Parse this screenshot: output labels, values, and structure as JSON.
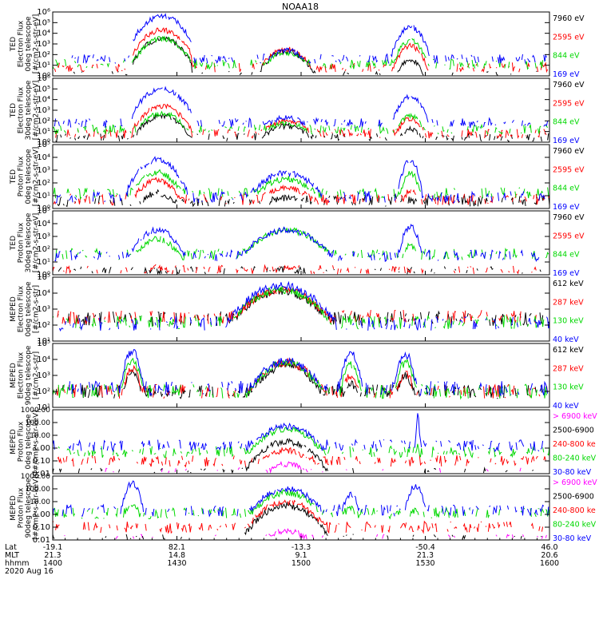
{
  "title": "NOAA18",
  "colors": {
    "black": "#000000",
    "red": "#ff0000",
    "green": "#00d800",
    "blue": "#0000ff",
    "magenta": "#ff00ff",
    "axis": "#000000"
  },
  "chart_data": {
    "type": "line",
    "x_axis": {
      "row_labels": [
        "Lat",
        "MLT",
        "hhmm"
      ],
      "ticks": [
        {
          "time": "1400",
          "lat": "-19.1",
          "mlt": "21.3"
        },
        {
          "time": "1430",
          "lat": "82.1",
          "mlt": "14.8"
        },
        {
          "time": "1500",
          "lat": "-13.3",
          "mlt": "9.1"
        },
        {
          "time": "1530",
          "lat": "-50.4",
          "mlt": "21.3"
        },
        {
          "time": "1600",
          "lat": "46.0",
          "mlt": "20.6"
        }
      ],
      "date": "2020 Aug 16"
    },
    "panels": [
      {
        "ylabel": [
          "TED",
          "Electron Flux",
          "0deg telescope",
          "[#/cm2-s-str-eV]"
        ],
        "scale": "log",
        "ylim_exp": [
          0,
          6
        ],
        "ticks": [
          "10⁰",
          "10¹",
          "10²",
          "10³",
          "10⁴",
          "10⁵",
          "10⁶"
        ],
        "legend": [
          {
            "label": "7960 eV",
            "color": "black"
          },
          {
            "label": "2595 eV",
            "color": "red"
          },
          {
            "label": "844 eV",
            "color": "green"
          },
          {
            "label": "169 eV",
            "color": "blue"
          }
        ],
        "peaks": [
          {
            "center": 0.22,
            "width": 0.05,
            "levels": [
              3.5,
              4.3,
              3.5,
              5.6
            ]
          },
          {
            "center": 0.47,
            "width": 0.05,
            "levels": [
              2.3,
              2.5,
              2.2,
              2.4
            ]
          },
          {
            "center": 0.72,
            "width": 0.03,
            "levels": [
              1.5,
              2.8,
              3.3,
              4.6
            ]
          }
        ],
        "base": [
          0,
          0.8,
          1.1,
          1.6
        ]
      },
      {
        "ylabel": [
          "TED",
          "Electron Flux",
          "30deg telescope",
          "[#/cm2-s-str-eV]"
        ],
        "scale": "log",
        "ylim_exp": [
          0,
          6
        ],
        "ticks": [
          "10⁰",
          "10¹",
          "10²",
          "10³",
          "10⁴",
          "10⁵",
          "10⁶"
        ],
        "legend": [
          {
            "label": "7960 eV",
            "color": "black"
          },
          {
            "label": "2595 eV",
            "color": "red"
          },
          {
            "label": "844 eV",
            "color": "green"
          },
          {
            "label": "169 eV",
            "color": "blue"
          }
        ],
        "peaks": [
          {
            "center": 0.22,
            "width": 0.05,
            "levels": [
              2.5,
              3.4,
              2.7,
              5.0
            ]
          },
          {
            "center": 0.47,
            "width": 0.06,
            "levels": [
              1.5,
              2.0,
              1.8,
              2.3
            ]
          },
          {
            "center": 0.72,
            "width": 0.03,
            "levels": [
              1.2,
              2.2,
              2.5,
              4.3
            ]
          }
        ],
        "base": [
          0.4,
          0.8,
          1.2,
          1.8
        ]
      },
      {
        "ylabel": [
          "TED",
          "Proton Flux",
          "0deg telescope",
          "[#/cm2-s-str-eV]"
        ],
        "scale": "log",
        "ylim_exp": [
          0,
          5
        ],
        "ticks": [
          "10⁰",
          "10¹",
          "10²",
          "10³",
          "10⁴",
          "10⁵"
        ],
        "legend": [
          {
            "label": "7960 eV",
            "color": "black"
          },
          {
            "label": "2595 eV",
            "color": "red"
          },
          {
            "label": "844 eV",
            "color": "green"
          },
          {
            "label": "169 eV",
            "color": "blue"
          }
        ],
        "peaks": [
          {
            "center": 0.21,
            "width": 0.05,
            "levels": [
              1.2,
              2.2,
              2.8,
              3.8
            ]
          },
          {
            "center": 0.47,
            "width": 0.07,
            "levels": [
              0.8,
              1.6,
              2.3,
              2.8
            ]
          },
          {
            "center": 0.72,
            "width": 0.02,
            "levels": [
              0.6,
              1.4,
              2.8,
              3.8
            ]
          }
        ],
        "base": [
          0.6,
          0.7,
          1.2,
          0.9
        ]
      },
      {
        "ylabel": [
          "TED",
          "Proton Flux",
          "30deg telescope",
          "[#/cm2-s-str-eV]"
        ],
        "scale": "log",
        "ylim_exp": [
          0,
          5
        ],
        "ticks": [
          "10⁰",
          "10¹",
          "10²",
          "10³",
          "10⁴",
          "10⁵"
        ],
        "legend": [
          {
            "label": "7960 eV",
            "color": "black"
          },
          {
            "label": "2595 eV",
            "color": "red"
          },
          {
            "label": "844 eV",
            "color": "green"
          },
          {
            "label": "169 eV",
            "color": "blue"
          }
        ],
        "peaks": [
          {
            "center": 0.21,
            "width": 0.05,
            "levels": [
              0.3,
              0.6,
              2.8,
              3.5
            ]
          },
          {
            "center": 0.47,
            "width": 0.08,
            "levels": [
              0.4,
              0.5,
              3.5,
              3.5
            ]
          },
          {
            "center": 0.72,
            "width": 0.02,
            "levels": [
              0.3,
              0.4,
              2.3,
              3.8
            ]
          }
        ],
        "base": [
          0.2,
          0.3,
          1.6,
          1.5
        ]
      },
      {
        "ylabel": [
          "MEPED",
          "Electron Flux",
          "0deg telescope",
          "[#/cm2-s-str]"
        ],
        "scale": "log",
        "ylim_exp": [
          1,
          5
        ],
        "ticks": [
          "10¹",
          "10²",
          "10³",
          "10⁴",
          "10⁵"
        ],
        "legend": [
          {
            "label": "612 keV",
            "color": "black"
          },
          {
            "label": "287 keV",
            "color": "red"
          },
          {
            "label": "130 keV",
            "color": "green"
          },
          {
            "label": "40 keV",
            "color": "blue"
          }
        ],
        "peaks": [
          {
            "center": 0.46,
            "width": 0.09,
            "levels": [
              4.1,
              4.2,
              4.2,
              4.5
            ]
          }
        ],
        "base": [
          2.4,
          2.5,
          2.2,
          2.1
        ]
      },
      {
        "ylabel": [
          "MEPED",
          "Electron Flux",
          "90deg telescope",
          "[#/cm2-s-str]"
        ],
        "scale": "log",
        "ylim_exp": [
          1,
          5
        ],
        "ticks": [
          "10¹",
          "10²",
          "10³",
          "10⁴",
          "10⁵"
        ],
        "legend": [
          {
            "label": "612 keV",
            "color": "black"
          },
          {
            "label": "287 keV",
            "color": "red"
          },
          {
            "label": "130 keV",
            "color": "green"
          },
          {
            "label": "40 keV",
            "color": "blue"
          }
        ],
        "peaks": [
          {
            "center": 0.16,
            "width": 0.02,
            "levels": [
              3.2,
              3.4,
              3.9,
              4.5
            ]
          },
          {
            "center": 0.47,
            "width": 0.07,
            "levels": [
              3.6,
              3.8,
              3.8,
              3.9
            ]
          },
          {
            "center": 0.6,
            "width": 0.02,
            "levels": [
              2.5,
              3.0,
              3.7,
              4.4
            ]
          },
          {
            "center": 0.71,
            "width": 0.02,
            "levels": [
              3.0,
              3.1,
              3.8,
              4.3
            ]
          }
        ],
        "base": [
          2.0,
          2.0,
          2.0,
          2.2
        ]
      },
      {
        "ylabel": [
          "MEPED",
          "Proton Flux",
          "0deg telescope",
          "[#/cm2-s-str-keV]"
        ],
        "scale": "log",
        "ylim_exp": [
          -2,
          3
        ],
        "ticks": [
          "0.01",
          "0.10",
          "1.00",
          "10.00",
          "100.00",
          "1000.00"
        ],
        "legend": [
          {
            "label": "> 6900 keV",
            "color": "magenta"
          },
          {
            "label": "2500-6900",
            "color": "black"
          },
          {
            "label": "240-800 ke",
            "color": "red"
          },
          {
            "label": "80-240 keV",
            "color": "green"
          },
          {
            "label": "30-80 keV",
            "color": "blue"
          }
        ],
        "peaks": [
          {
            "center": 0.47,
            "width": 0.07,
            "levels": [
              -1.3,
              0.5,
              -0.2,
              1.5,
              1.7
            ]
          },
          {
            "center": 0.735,
            "width": 0.004,
            "levels": [
              -2,
              -2,
              -2,
              0.2,
              2.5
            ]
          }
        ],
        "base": [
          -2,
          -2,
          -1.0,
          -0.3,
          0.2
        ]
      },
      {
        "ylabel": [
          "MEPED",
          "Proton Flux",
          "90deg telescope",
          "[#/cm2-s-str-keV]"
        ],
        "scale": "log",
        "ylim_exp": [
          -2,
          3
        ],
        "ticks": [
          "0.01",
          "0.10",
          "1.00",
          "10.00",
          "100.00",
          "1000.00"
        ],
        "legend": [
          {
            "label": "> 6900 keV",
            "color": "magenta"
          },
          {
            "label": "2500-6900",
            "color": "black"
          },
          {
            "label": "240-800 ke",
            "color": "red"
          },
          {
            "label": "80-240 keV",
            "color": "green"
          },
          {
            "label": "30-80 keV",
            "color": "blue"
          }
        ],
        "peaks": [
          {
            "center": 0.16,
            "width": 0.02,
            "levels": [
              -2,
              -2,
              -1.0,
              0.8,
              2.4
            ]
          },
          {
            "center": 0.47,
            "width": 0.07,
            "levels": [
              -1.3,
              0.7,
              1.0,
              1.7,
              2.0
            ]
          },
          {
            "center": 0.6,
            "width": 0.02,
            "levels": [
              -2,
              -2,
              -1.0,
              0.5,
              1.5
            ]
          },
          {
            "center": 0.73,
            "width": 0.02,
            "levels": [
              -2,
              -2,
              -1.3,
              0.3,
              2.2
            ]
          }
        ],
        "base": [
          -2,
          -2,
          -1.0,
          0.1,
          0.3
        ]
      }
    ]
  }
}
